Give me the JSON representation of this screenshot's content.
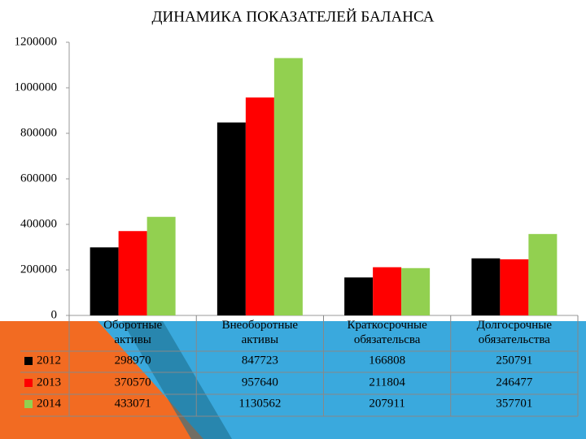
{
  "chart_data": {
    "type": "bar",
    "title": "ДИНАМИКА ПОКАЗАТЕЛЕЙ БАЛАНСА",
    "categories": [
      "Оборотные\nактивы",
      "Внеоборотные\nактивы",
      "Краткосрочные\nобязательсва",
      "Долгосрочные\nобязательства"
    ],
    "series": [
      {
        "name": "2012",
        "color": "#000000",
        "values": [
          298970,
          847723,
          166808,
          250791
        ]
      },
      {
        "name": "2013",
        "color": "#ff0000",
        "values": [
          370570,
          957640,
          211804,
          246477
        ]
      },
      {
        "name": "2014",
        "color": "#92d050",
        "values": [
          433071,
          1130562,
          207911,
          357701
        ]
      }
    ],
    "ylim": [
      0,
      1200000
    ],
    "yticks": [
      0,
      200000,
      400000,
      600000,
      800000,
      1000000,
      1200000
    ],
    "grid": false
  }
}
